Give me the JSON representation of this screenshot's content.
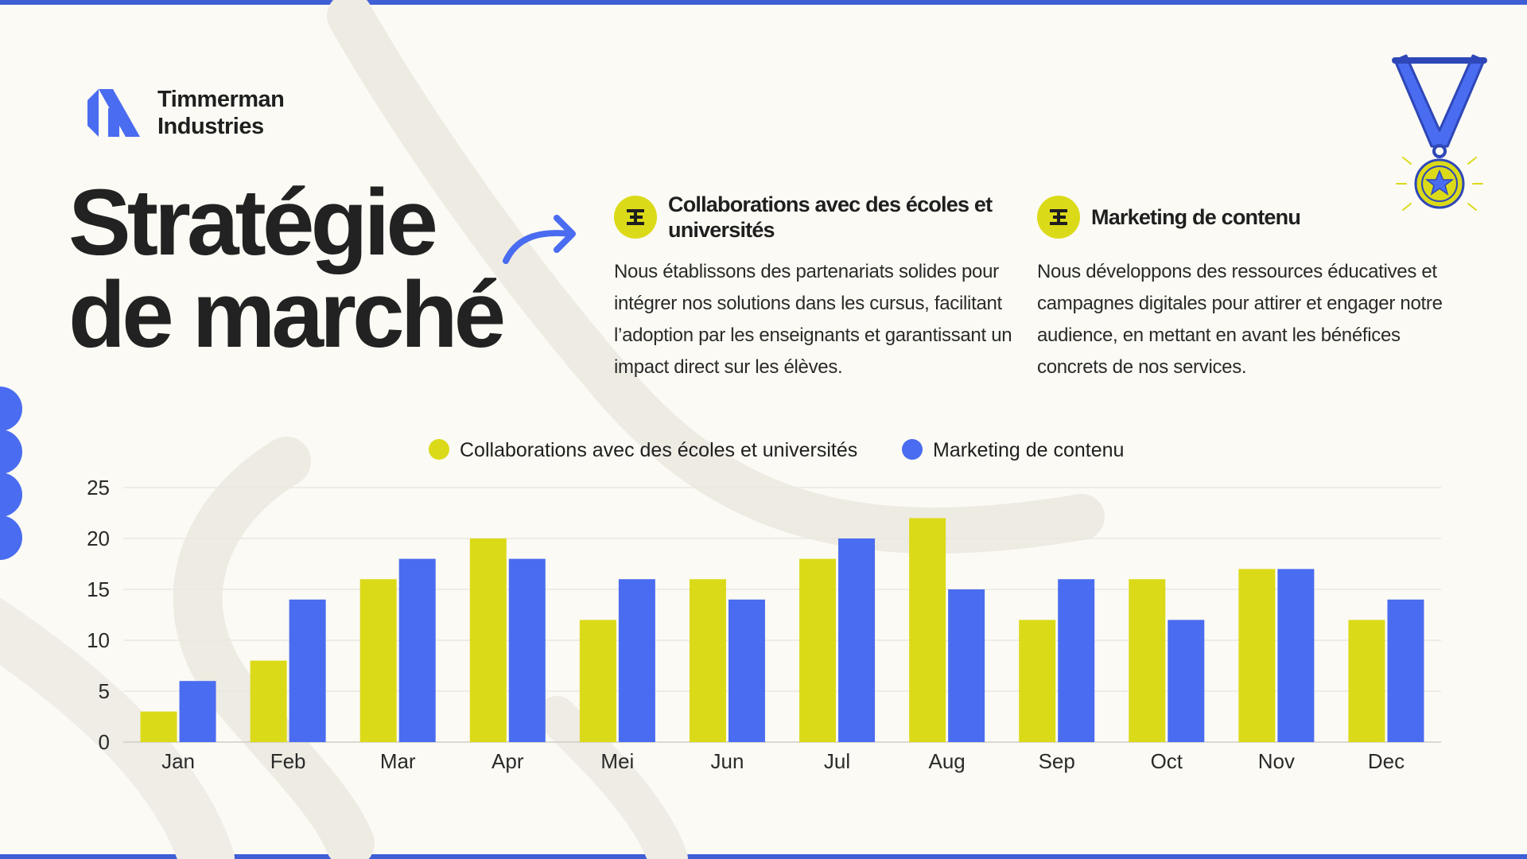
{
  "brand": {
    "line1": "Timmerman",
    "line2": "Industries"
  },
  "headline": {
    "line1": "Stratégie",
    "line2": "de marché"
  },
  "columns": [
    {
      "title": "Collaborations avec des écoles et universités",
      "body": "Nous établissons des partenariats solides pour intégrer nos solutions dans les cursus, facilitant l’adoption par les enseignants et garantissant un impact direct sur les élèves."
    },
    {
      "title": "Marketing de contenu",
      "body": "Nous développons des ressources éducatives et campagnes digitales pour attirer et engager notre audience, en mettant en avant les bénéfices concrets de nos services."
    }
  ],
  "colors": {
    "accent_blue": "#4A6CF0",
    "accent_yellow": "#DBDA19",
    "frame_blue": "#3F5FD6"
  },
  "chart_data": {
    "type": "bar",
    "categories": [
      "Jan",
      "Feb",
      "Mar",
      "Apr",
      "Mei",
      "Jun",
      "Jul",
      "Aug",
      "Sep",
      "Oct",
      "Nov",
      "Dec"
    ],
    "series": [
      {
        "name": "Collaborations avec des écoles et universités",
        "color": "#DBDA19",
        "values": [
          3,
          8,
          16,
          20,
          12,
          16,
          18,
          22,
          12,
          16,
          17,
          12
        ]
      },
      {
        "name": "Marketing de contenu",
        "color": "#4A6CF0",
        "values": [
          6,
          14,
          18,
          18,
          16,
          14,
          20,
          15,
          16,
          12,
          17,
          14
        ]
      }
    ],
    "yticks": [
      0,
      5,
      10,
      15,
      20,
      25
    ],
    "ylim": [
      0,
      25
    ],
    "grid": true,
    "legend": "top-center"
  }
}
